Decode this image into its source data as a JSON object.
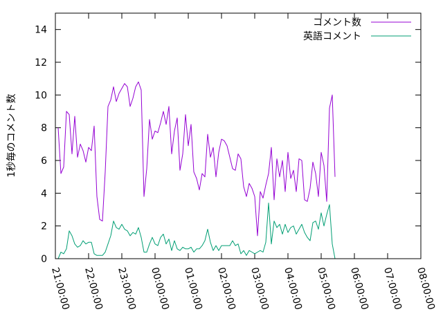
{
  "chart_data": {
    "type": "line",
    "title": "",
    "xlabel": "",
    "ylabel": "1秒毎のコメント数",
    "xlim": [
      "21:00:00",
      "08:00:00"
    ],
    "ylim": [
      0,
      15
    ],
    "x_ticks": [
      "21:00:00",
      "22:00:00",
      "23:00:00",
      "00:00:00",
      "01:00:00",
      "02:00:00",
      "03:00:00",
      "04:00:00",
      "05:00:00",
      "06:00:00",
      "07:00:00",
      "08:00:00"
    ],
    "y_ticks": [
      "0",
      "2",
      "4",
      "6",
      "8",
      "10",
      "12",
      "14"
    ],
    "grid": false,
    "legend_position": "top-right",
    "sample_interval": "5 minutes",
    "x_start": "21:05:00",
    "series": [
      {
        "name": "コメント数",
        "color": "#9400d3",
        "values": [
          8.0,
          5.2,
          5.6,
          9.0,
          8.8,
          6.4,
          8.7,
          6.2,
          7.0,
          6.6,
          5.9,
          6.8,
          6.6,
          8.1,
          3.8,
          2.4,
          2.3,
          5.3,
          9.3,
          9.7,
          10.5,
          9.6,
          10.1,
          10.4,
          10.7,
          10.5,
          9.3,
          9.8,
          10.5,
          10.8,
          10.3,
          3.8,
          5.5,
          8.5,
          7.3,
          7.8,
          7.7,
          8.3,
          9.0,
          8.2,
          9.3,
          6.4,
          7.8,
          8.6,
          5.4,
          6.4,
          8.8,
          6.9,
          8.2,
          5.3,
          4.9,
          4.2,
          5.2,
          5.0,
          7.6,
          6.2,
          6.8,
          5.0,
          6.5,
          7.3,
          7.2,
          6.9,
          6.2,
          5.5,
          5.4,
          6.4,
          6.1,
          4.4,
          3.8,
          4.6,
          4.3,
          3.8,
          1.4,
          4.1,
          3.7,
          4.5,
          5.2,
          6.8,
          3.6,
          6.1,
          5.0,
          6.0,
          4.1,
          6.5,
          4.9,
          5.4,
          4.1,
          6.1,
          6.0,
          3.6,
          3.5,
          4.3,
          5.9,
          5.2,
          3.8,
          6.5,
          5.7,
          3.5,
          9.2,
          10.0,
          5.0
        ]
      },
      {
        "name": "英語コメント",
        "color": "#009e73",
        "values": [
          0.0,
          0.4,
          0.3,
          0.6,
          1.7,
          1.4,
          0.9,
          0.7,
          0.8,
          1.1,
          0.9,
          1.0,
          1.0,
          0.3,
          0.2,
          0.2,
          0.2,
          0.4,
          0.9,
          1.4,
          2.3,
          1.9,
          1.8,
          2.1,
          1.8,
          1.7,
          1.4,
          1.6,
          1.5,
          1.9,
          1.3,
          0.4,
          0.4,
          0.9,
          1.3,
          0.9,
          0.8,
          1.3,
          1.5,
          0.9,
          1.2,
          0.5,
          1.1,
          0.6,
          0.5,
          0.7,
          0.6,
          0.6,
          0.7,
          0.4,
          0.6,
          0.6,
          0.8,
          1.1,
          1.8,
          1.0,
          0.5,
          0.8,
          0.5,
          0.8,
          0.8,
          0.8,
          0.8,
          1.1,
          0.8,
          0.9,
          0.3,
          0.5,
          0.2,
          0.5,
          0.4,
          0.3,
          0.4,
          0.5,
          0.4,
          1.0,
          3.4,
          0.9,
          2.3,
          1.9,
          2.1,
          1.5,
          2.1,
          1.6,
          1.9,
          2.0,
          1.5,
          1.8,
          2.1,
          1.6,
          1.3,
          1.1,
          2.2,
          2.3,
          1.8,
          2.8,
          2.0,
          2.7,
          3.3,
          0.9,
          0.0
        ]
      }
    ]
  }
}
